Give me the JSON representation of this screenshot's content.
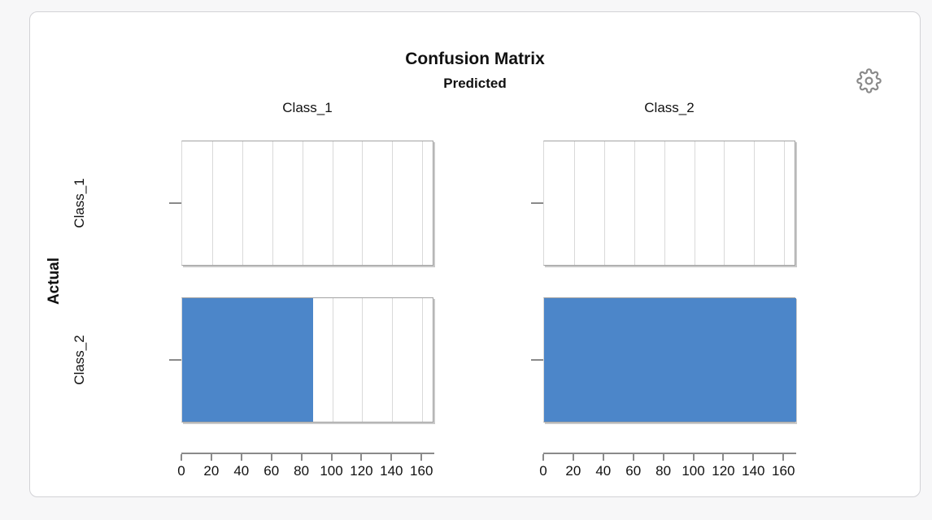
{
  "icons": {
    "settings": "gear-icon"
  },
  "chart_data": {
    "type": "bar",
    "title": "Confusion Matrix",
    "facet_x_label": "Predicted",
    "facet_y_label": "Actual",
    "columns": [
      "Class_1",
      "Class_2"
    ],
    "rows": [
      "Class_1",
      "Class_2"
    ],
    "matrix": [
      [
        0,
        0
      ],
      [
        87,
        168
      ]
    ],
    "xlim": [
      0,
      168
    ],
    "x_ticks": [
      0,
      20,
      40,
      60,
      80,
      100,
      120,
      140,
      160
    ],
    "grid_step": 20,
    "grid": "vertical",
    "legend": "none",
    "layout": "2x2 faceted horizontal bar panels (rows = Actual class, columns = Predicted class)",
    "colors": {
      "bar": "#4c86c9",
      "grid": "#d9d9d9",
      "panel_border": "#a2a2a2",
      "axis": "#8a8a8a",
      "card_bg": "#ffffff",
      "page_bg": "#f7f7f8",
      "text": "#111111",
      "gear": "#8a8a8a"
    }
  }
}
